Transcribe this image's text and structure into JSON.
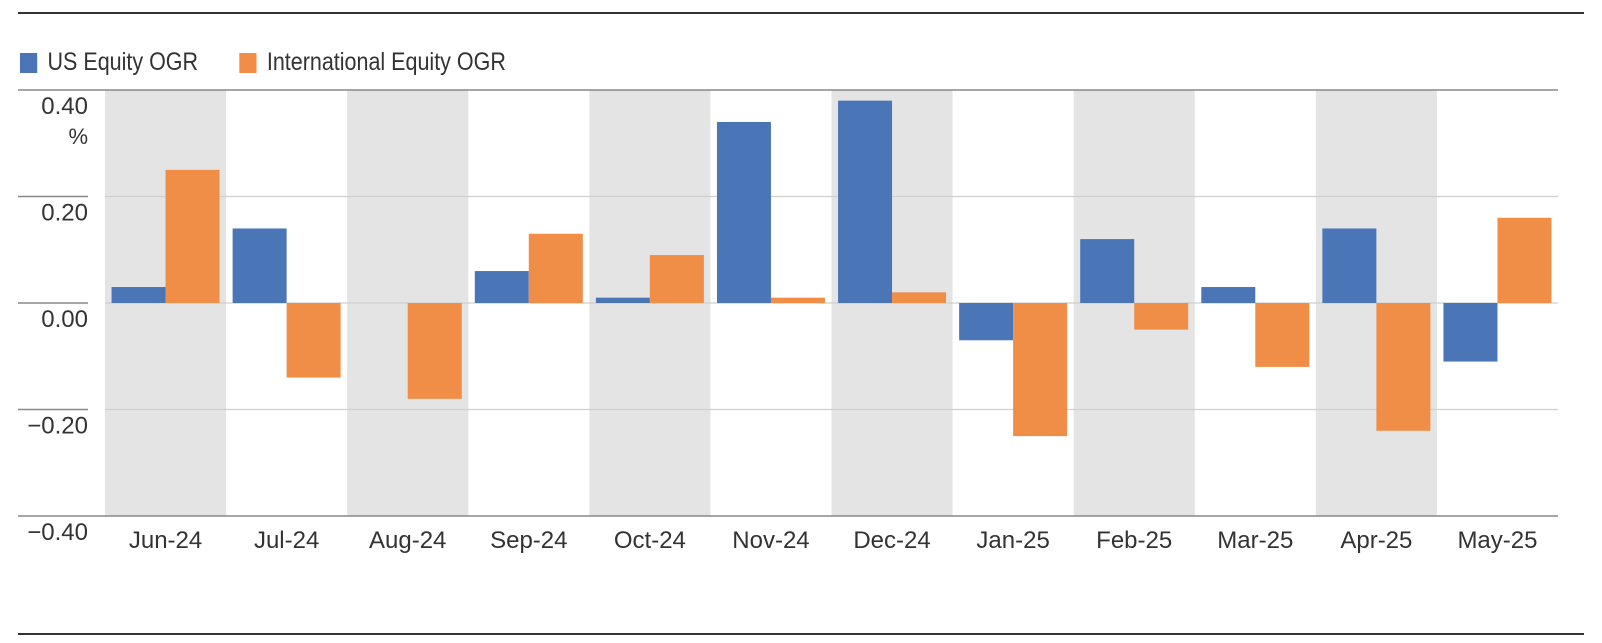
{
  "chart_data": {
    "type": "bar",
    "categories": [
      "Jun-24",
      "Jul-24",
      "Aug-24",
      "Sep-24",
      "Oct-24",
      "Nov-24",
      "Dec-24",
      "Jan-25",
      "Feb-25",
      "Mar-25",
      "Apr-25",
      "May-25"
    ],
    "series": [
      {
        "name": "US Equity OGR",
        "color": "#4a76b8",
        "values": [
          0.03,
          0.14,
          0.0,
          0.06,
          0.01,
          0.34,
          0.38,
          -0.07,
          0.12,
          0.03,
          0.14,
          -0.11
        ]
      },
      {
        "name": "International Equity OGR",
        "color": "#f08d47",
        "values": [
          0.25,
          -0.14,
          -0.18,
          0.13,
          0.09,
          0.01,
          0.02,
          -0.25,
          -0.05,
          -0.12,
          -0.24,
          0.16
        ]
      }
    ],
    "ylim": [
      -0.4,
      0.4
    ],
    "yticks": [
      0.4,
      0.2,
      0.0,
      -0.2,
      -0.4
    ],
    "ytick_labels": [
      "0.40",
      "0.20",
      "0.00",
      "−0.20",
      "−0.40"
    ],
    "yunit": "%",
    "legend_position": "top-left",
    "alternating_band_color": "#e4e4e4",
    "grid": true
  }
}
